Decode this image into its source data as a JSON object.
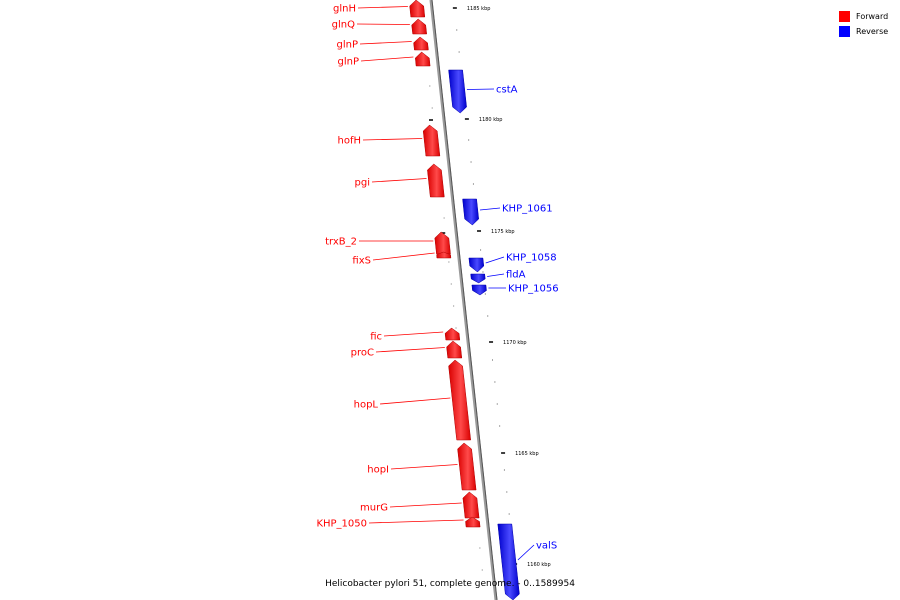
{
  "caption": "Helicobacter pylori 51, complete genome. - 0..1589954",
  "legend": {
    "forward_label": "Forward",
    "reverse_label": "Reverse",
    "forward_color": "#ff0000",
    "reverse_color": "#0000ff"
  },
  "scale_labels": [
    "1185 kbp",
    "1180 kbp",
    "1175 kbp",
    "1170 kbp",
    "1165 kbp",
    "1160 kbp"
  ],
  "genes": [
    {
      "name": "glnH",
      "strand": "forward"
    },
    {
      "name": "glnQ",
      "strand": "forward"
    },
    {
      "name": "glnP",
      "strand": "forward"
    },
    {
      "name": "glnP",
      "strand": "forward"
    },
    {
      "name": "cstA",
      "strand": "reverse"
    },
    {
      "name": "hofH",
      "strand": "forward"
    },
    {
      "name": "pgi",
      "strand": "forward"
    },
    {
      "name": "KHP_1061",
      "strand": "reverse"
    },
    {
      "name": "trxB_2",
      "strand": "forward"
    },
    {
      "name": "fixS",
      "strand": "forward"
    },
    {
      "name": "KHP_1058",
      "strand": "reverse"
    },
    {
      "name": "fldA",
      "strand": "reverse"
    },
    {
      "name": "KHP_1056",
      "strand": "reverse"
    },
    {
      "name": "fic",
      "strand": "forward"
    },
    {
      "name": "proC",
      "strand": "forward"
    },
    {
      "name": "hopL",
      "strand": "forward"
    },
    {
      "name": "hopI",
      "strand": "forward"
    },
    {
      "name": "murG",
      "strand": "forward"
    },
    {
      "name": "KHP_1050",
      "strand": "forward"
    },
    {
      "name": "valS",
      "strand": "reverse"
    }
  ]
}
